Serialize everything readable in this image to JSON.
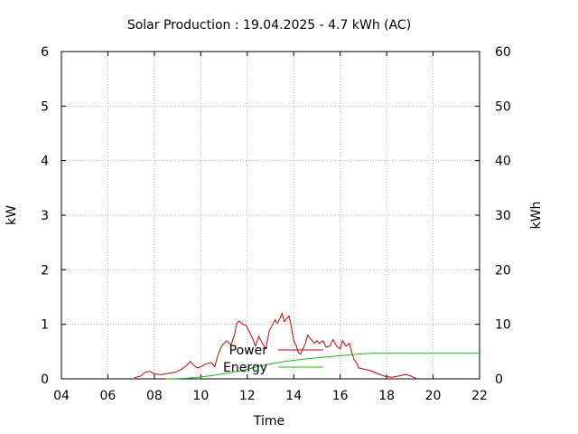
{
  "chart_data": {
    "type": "line",
    "title": "Solar Production : 19.04.2025 - 4.7 kWh (AC)",
    "xlabel": "Time",
    "ylabel": "kW",
    "y2label": "kWh",
    "xlim": [
      4,
      22
    ],
    "ylim": [
      0,
      6
    ],
    "y2lim": [
      0,
      60
    ],
    "x_ticks": [
      4,
      6,
      8,
      10,
      12,
      14,
      16,
      18,
      20,
      22
    ],
    "x_tick_labels": [
      "04",
      "06",
      "08",
      "10",
      "12",
      "14",
      "16",
      "18",
      "20",
      "22"
    ],
    "y_ticks": [
      0,
      1,
      2,
      3,
      4,
      5,
      6
    ],
    "y_tick_labels": [
      "0",
      "1",
      "2",
      "3",
      "4",
      "5",
      "6"
    ],
    "y2_ticks": [
      0,
      10,
      20,
      30,
      40,
      50,
      60
    ],
    "y2_tick_labels": [
      "0",
      "10",
      "20",
      "30",
      "40",
      "50",
      "60"
    ],
    "grid": true,
    "legend_position": "center",
    "series": [
      {
        "name": "Power",
        "axis": "y",
        "color": "#cc0000",
        "x": [
          7.15,
          7.4,
          7.6,
          7.8,
          8.0,
          8.3,
          8.6,
          8.9,
          9.2,
          9.4,
          9.55,
          9.7,
          9.85,
          10.0,
          10.2,
          10.45,
          10.6,
          10.75,
          10.9,
          11.1,
          11.3,
          11.45,
          11.55,
          11.65,
          11.8,
          11.95,
          12.1,
          12.25,
          12.35,
          12.5,
          12.65,
          12.8,
          12.95,
          13.1,
          13.2,
          13.3,
          13.4,
          13.5,
          13.6,
          13.7,
          13.8,
          13.9,
          14.0,
          14.1,
          14.2,
          14.3,
          14.4,
          14.5,
          14.6,
          14.75,
          14.9,
          15.0,
          15.1,
          15.25,
          15.4,
          15.55,
          15.7,
          15.85,
          16.0,
          16.1,
          16.25,
          16.4,
          16.5,
          16.6,
          16.7,
          16.8,
          17.0,
          17.3,
          17.6,
          17.9,
          18.2,
          18.5,
          18.8,
          19.0,
          19.2,
          19.3
        ],
        "values": [
          0.02,
          0.05,
          0.12,
          0.14,
          0.09,
          0.08,
          0.1,
          0.12,
          0.18,
          0.25,
          0.32,
          0.25,
          0.2,
          0.22,
          0.27,
          0.3,
          0.22,
          0.45,
          0.6,
          0.7,
          0.62,
          0.8,
          1.02,
          1.06,
          1.0,
          0.98,
          0.86,
          0.72,
          0.6,
          0.78,
          0.65,
          0.55,
          0.88,
          1.0,
          1.08,
          1.02,
          1.1,
          1.2,
          1.05,
          1.1,
          1.15,
          0.95,
          0.7,
          0.62,
          0.48,
          0.45,
          0.55,
          0.65,
          0.8,
          0.72,
          0.65,
          0.7,
          0.65,
          0.7,
          0.58,
          0.6,
          0.72,
          0.6,
          0.55,
          0.7,
          0.6,
          0.65,
          0.48,
          0.35,
          0.3,
          0.2,
          0.18,
          0.15,
          0.1,
          0.05,
          0.03,
          0.05,
          0.08,
          0.06,
          0.02,
          0.0
        ]
      },
      {
        "name": "Energy",
        "axis": "y2",
        "color": "#00cc00",
        "x": [
          8.5,
          9.0,
          9.5,
          10.0,
          10.5,
          11.0,
          11.5,
          12.0,
          12.5,
          13.0,
          13.5,
          14.0,
          14.5,
          15.0,
          15.5,
          16.0,
          16.5,
          17.0,
          17.2,
          17.4,
          18.0,
          19.0,
          20.0,
          21.0,
          22.0
        ],
        "values": [
          0.0,
          0.05,
          0.15,
          0.35,
          0.6,
          0.95,
          1.3,
          1.75,
          2.3,
          2.75,
          3.1,
          3.4,
          3.65,
          3.85,
          4.05,
          4.25,
          4.45,
          4.6,
          4.65,
          4.7,
          4.7,
          4.7,
          4.7,
          4.7,
          4.7
        ]
      }
    ]
  }
}
